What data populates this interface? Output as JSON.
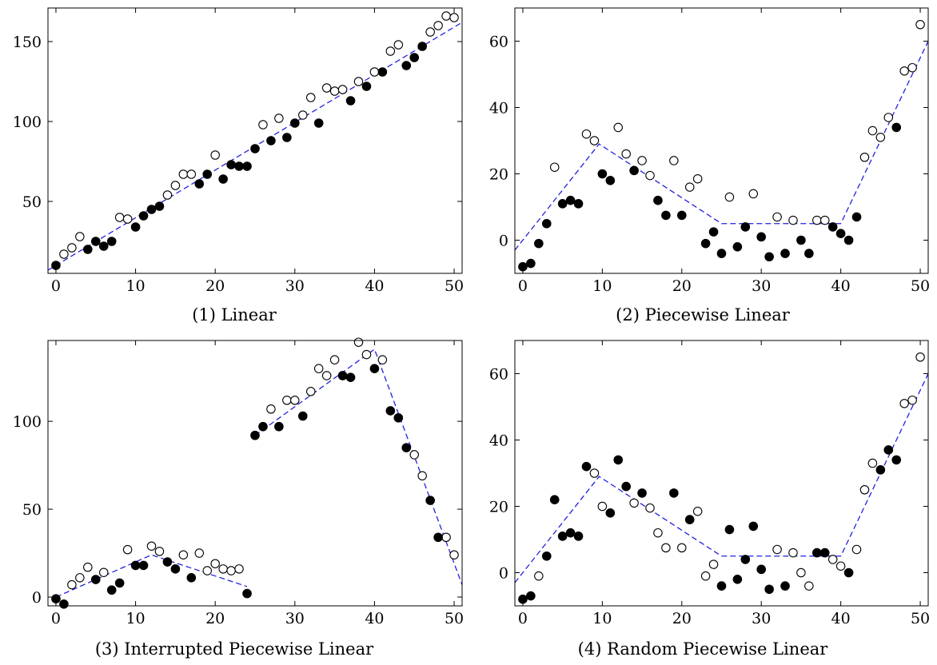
{
  "chart_data": [
    {
      "type": "scatter",
      "caption": "(1) Linear",
      "xlim": [
        -1,
        51
      ],
      "ylim": [
        5,
        171
      ],
      "xticks": [
        0,
        10,
        20,
        30,
        40,
        50
      ],
      "yticks": [
        50,
        100,
        150
      ],
      "filled": {
        "x": [
          0,
          4,
          5,
          6,
          7,
          10,
          11,
          12,
          13,
          18,
          19,
          21,
          22,
          23,
          24,
          25,
          27,
          29,
          30,
          33,
          37,
          39,
          41,
          44,
          45,
          46
        ],
        "y": [
          10,
          20,
          25,
          22,
          25,
          34,
          41,
          45,
          47,
          61,
          67,
          64,
          73,
          72,
          72,
          83,
          88,
          90,
          99,
          99,
          113,
          122,
          131,
          135,
          140,
          147
        ]
      },
      "hollow": {
        "x": [
          1,
          2,
          3,
          8,
          9,
          14,
          15,
          16,
          17,
          20,
          26,
          28,
          31,
          32,
          34,
          35,
          36,
          38,
          40,
          42,
          43,
          47,
          48,
          49,
          50
        ],
        "y": [
          17,
          21,
          28,
          40,
          39,
          54,
          60,
          67,
          67,
          79,
          98,
          102,
          104,
          115,
          121,
          119,
          120,
          125,
          131,
          144,
          148,
          156,
          160,
          166,
          165
        ]
      },
      "fit": {
        "x": [
          -1,
          51
        ],
        "y": [
          7,
          162
        ]
      }
    },
    {
      "type": "scatter",
      "caption": "(2) Piecewise Linear",
      "xlim": [
        -1,
        51
      ],
      "ylim": [
        -10,
        70
      ],
      "xticks": [
        0,
        10,
        20,
        30,
        40,
        50
      ],
      "yticks": [
        0,
        20,
        40,
        60
      ],
      "filled": {
        "x": [
          0,
          1,
          2,
          3,
          5,
          6,
          7,
          10,
          11,
          14,
          17,
          18,
          20,
          23,
          24,
          25,
          27,
          28,
          30,
          31,
          33,
          35,
          36,
          39,
          40,
          41,
          42,
          47
        ],
        "y": [
          -8,
          -7,
          -1,
          5,
          11,
          12,
          11,
          20,
          18,
          21,
          12,
          7.5,
          7.5,
          -1,
          2.5,
          -4,
          -2,
          4,
          1,
          -5,
          -4,
          0,
          -4,
          4,
          2,
          0,
          7,
          34
        ]
      },
      "hollow": {
        "x": [
          4,
          8,
          9,
          12,
          13,
          15,
          16,
          19,
          21,
          22,
          26,
          29,
          32,
          34,
          37,
          38,
          43,
          44,
          45,
          46,
          48,
          49,
          50
        ],
        "y": [
          22,
          32,
          30,
          34,
          26,
          24,
          19.5,
          24,
          16,
          18.5,
          13,
          14,
          7,
          6,
          6,
          6,
          25,
          33,
          31,
          37,
          51,
          52,
          65
        ]
      },
      "fit": {
        "x": [
          -1,
          9.6,
          25,
          40,
          51
        ],
        "y": [
          -3,
          29,
          5,
          5,
          60
        ]
      }
    },
    {
      "type": "scatter",
      "caption": "(3) Interrupted Piecewise Linear",
      "xlim": [
        -1,
        51
      ],
      "ylim": [
        -5,
        146
      ],
      "xticks": [
        0,
        10,
        20,
        30,
        40,
        50
      ],
      "yticks": [
        0,
        50,
        100
      ],
      "filled": {
        "x": [
          0,
          1,
          5,
          7,
          8,
          10,
          11,
          14,
          15,
          17,
          24,
          25,
          26,
          28,
          31,
          36,
          37,
          40,
          42,
          43,
          44,
          47,
          48
        ],
        "y": [
          -1,
          -4,
          10,
          4,
          8,
          18,
          18,
          20,
          16,
          11,
          2,
          92,
          97,
          97,
          103,
          126,
          125,
          130,
          106,
          102,
          85,
          55,
          34
        ]
      },
      "hollow": {
        "x": [
          2,
          3,
          4,
          6,
          9,
          12,
          13,
          16,
          18,
          19,
          20,
          21,
          22,
          23,
          27,
          29,
          30,
          32,
          33,
          34,
          35,
          38,
          39,
          41,
          45,
          46,
          49,
          50
        ],
        "y": [
          7,
          11,
          17,
          14,
          27,
          29,
          26,
          24,
          25,
          15,
          19,
          16,
          15,
          16,
          107,
          112,
          112,
          117,
          130,
          126,
          135,
          145,
          138,
          135,
          81,
          69,
          34,
          24
        ]
      },
      "fit": [
        {
          "x": [
            0,
            12,
            24
          ],
          "y": [
            0,
            24,
            6
          ]
        },
        {
          "x": [
            25,
            40,
            51
          ],
          "y": [
            92,
            141,
            7
          ]
        }
      ]
    },
    {
      "type": "scatter",
      "caption": "(4) Random Piecewise Linear",
      "xlim": [
        -1,
        51
      ],
      "ylim": [
        -10,
        70
      ],
      "xticks": [
        0,
        10,
        20,
        30,
        40,
        50
      ],
      "yticks": [
        0,
        20,
        40,
        60
      ],
      "filled": {
        "x": [
          0,
          1,
          3,
          4,
          5,
          6,
          7,
          8,
          11,
          12,
          13,
          15,
          19,
          21,
          25,
          26,
          27,
          28,
          29,
          30,
          31,
          33,
          37,
          38,
          41,
          45,
          46,
          47
        ],
        "y": [
          -8,
          -7,
          5,
          22,
          11,
          12,
          11,
          32,
          18,
          34,
          26,
          24,
          24,
          16,
          -4,
          13,
          -2,
          4,
          14,
          1,
          -5,
          -4,
          6,
          6,
          0,
          31,
          37,
          34
        ]
      },
      "hollow": {
        "x": [
          2,
          9,
          10,
          14,
          16,
          17,
          18,
          20,
          22,
          23,
          24,
          32,
          34,
          35,
          36,
          39,
          40,
          42,
          43,
          44,
          48,
          49,
          50
        ],
        "y": [
          -1,
          30,
          20,
          21,
          19.5,
          12,
          7.5,
          7.5,
          18.5,
          -1,
          2.5,
          7,
          6,
          0,
          -4,
          4,
          2,
          7,
          25,
          33,
          51,
          52,
          65
        ]
      },
      "fit": {
        "x": [
          -1,
          9.6,
          25,
          40,
          51
        ],
        "y": [
          -3,
          29,
          5,
          5,
          60
        ]
      }
    }
  ],
  "colors": {
    "fit_line": "#2222dd",
    "marker": "#000000",
    "axis": "#000000"
  }
}
